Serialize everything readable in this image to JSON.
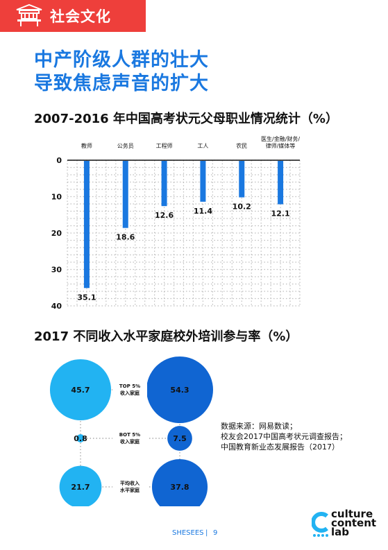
{
  "header": {
    "section_label": "社会文化"
  },
  "headline": {
    "line1": "中产阶级人群的壮大",
    "line2": "导致焦虑声音的扩大"
  },
  "chart1": {
    "title": "2007-2016 年中国高考状元父母职业情况统计（%）"
  },
  "chart2": {
    "title": "2017 不同收入水平家庭校外培训参与率（%）"
  },
  "source": {
    "line1": "数据来源：网易数读；",
    "line2": "校友会2017中国高考状元调查报告；",
    "line3": "中国教育新业态发展报告（2017）"
  },
  "footer": {
    "brand": "SHESEES",
    "page_number": "9"
  },
  "logo": {
    "line1": "culture",
    "line2": "content",
    "line3": "lab"
  },
  "colors": {
    "accent_red": "#ee3f3b",
    "bar_blue": "#1a78e0",
    "light_blue": "#22b3f2",
    "dark_blue": "#1065d2"
  },
  "chart_data": [
    {
      "type": "bar",
      "orientation": "vertical-downward",
      "categories": [
        "教师",
        "公务员",
        "工程师",
        "工人",
        "农民",
        "医生/金融/财务/律师/媒体等"
      ],
      "values": [
        35.1,
        18.6,
        12.6,
        11.4,
        10.2,
        12.1
      ],
      "yticks": [
        "0",
        "10",
        "20",
        "30",
        "40"
      ],
      "ylim": [
        0,
        40
      ],
      "grid": true
    },
    {
      "type": "bubble",
      "columns": [
        "left",
        "right"
      ],
      "rows": [
        {
          "label": "TOP 5%收入家庭",
          "values": [
            45.7,
            54.3
          ]
        },
        {
          "label": "BOT 5%收入家庭",
          "values": [
            0.8,
            7.5
          ]
        },
        {
          "label": "平均收入水平家庭",
          "values": [
            21.7,
            37.8
          ]
        }
      ]
    }
  ]
}
